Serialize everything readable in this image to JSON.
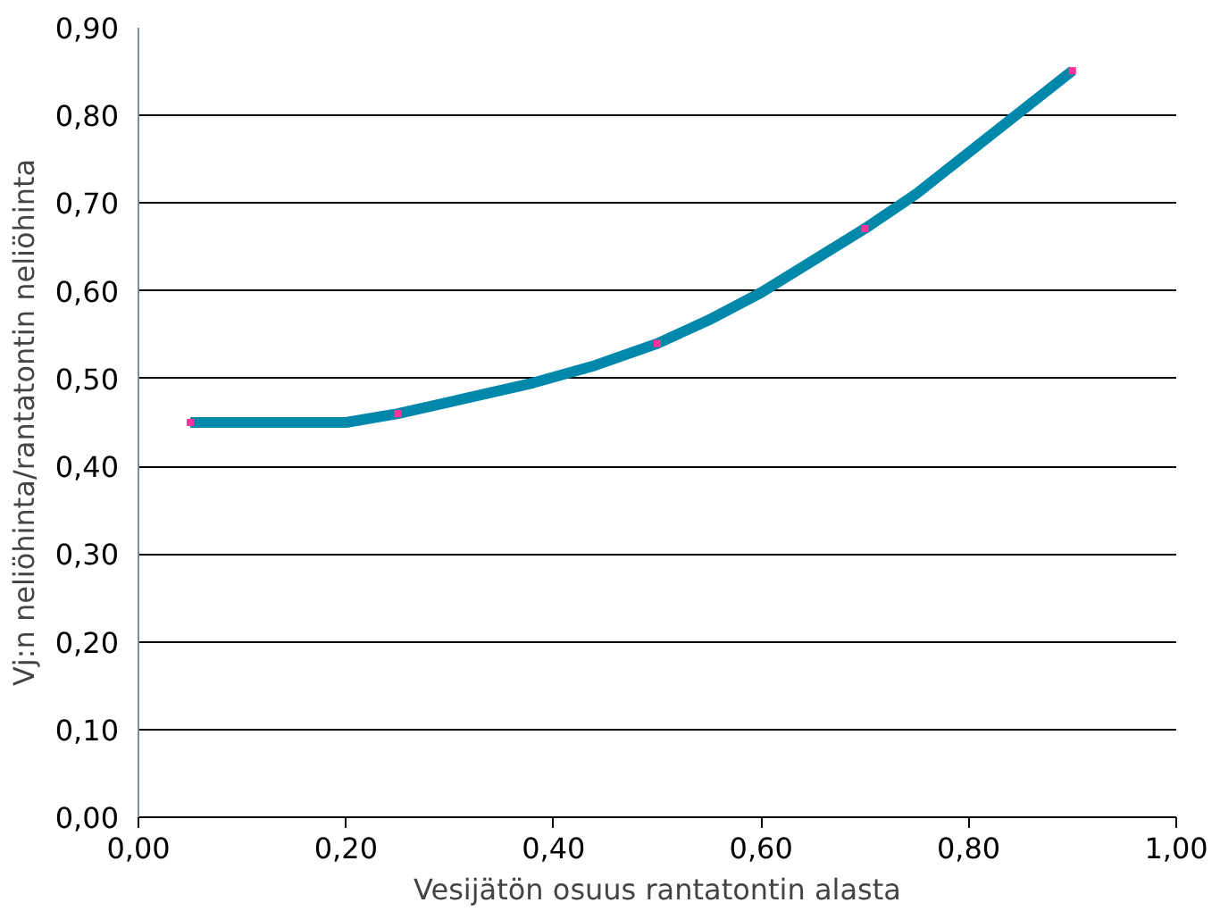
{
  "chart_data": {
    "type": "line",
    "xlabel": "Vesijätön osuus rantatontin alasta",
    "ylabel": "Vj:n neliöhinta/rantatontin neliöhinta",
    "xlim": [
      0,
      1
    ],
    "xticks": [
      {
        "value": 0,
        "label": "0,00"
      },
      {
        "value": 0.2,
        "label": "0,20"
      },
      {
        "value": 0.4,
        "label": "0,40"
      },
      {
        "value": 0.6,
        "label": "0,60"
      },
      {
        "value": 0.8,
        "label": "0,80"
      },
      {
        "value": 1,
        "label": "1,00"
      }
    ],
    "ylim": [
      0,
      0.9
    ],
    "yticks": [
      {
        "value": 0,
        "label": "0,00"
      },
      {
        "value": 0.1,
        "label": "0,10"
      },
      {
        "value": 0.2,
        "label": "0,20"
      },
      {
        "value": 0.3,
        "label": "0,30"
      },
      {
        "value": 0.4,
        "label": "0,40"
      },
      {
        "value": 0.5,
        "label": "0,50"
      },
      {
        "value": 0.6,
        "label": "0,60"
      },
      {
        "value": 0.7,
        "label": "0,70"
      },
      {
        "value": 0.8,
        "label": "0,80"
      },
      {
        "value": 0.9,
        "label": "0,90"
      }
    ],
    "grid": "y",
    "line_style": "solid",
    "series": [
      {
        "color": "#0088aa",
        "marker": "none",
        "x": [
          0.05,
          0.2,
          0.25,
          0.31,
          0.38,
          0.44,
          0.5,
          0.55,
          0.6,
          0.7,
          0.75,
          0.9
        ],
        "values": [
          0.45,
          0.45,
          0.46,
          0.476,
          0.495,
          0.515,
          0.54,
          0.567,
          0.598,
          0.671,
          0.711,
          0.851
        ]
      },
      {
        "type": "scatter",
        "color": "#ff3399",
        "marker": "square",
        "x": [
          0.05,
          0.25,
          0.5,
          0.7,
          0.9
        ],
        "values": [
          0.45,
          0.46,
          0.54,
          0.671,
          0.851
        ]
      }
    ]
  }
}
